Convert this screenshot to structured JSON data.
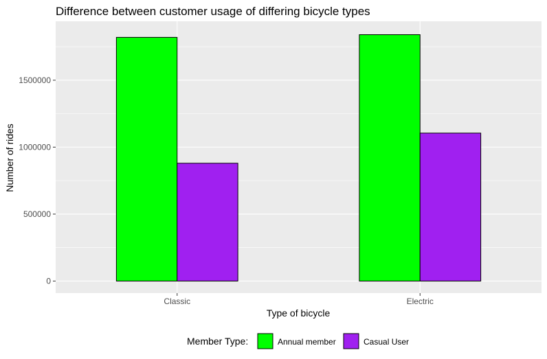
{
  "chart_data": {
    "type": "bar",
    "title": "Difference between customer usage of differing bicycle types",
    "xlabel": "Type of bicycle",
    "ylabel": "Number of rides",
    "categories": [
      "Classic",
      "Electric"
    ],
    "series": [
      {
        "name": "Annual member",
        "values": [
          1820000,
          1840000
        ],
        "color": "#00ff00"
      },
      {
        "name": "Casual User",
        "values": [
          880000,
          1105000
        ],
        "color": "#a020f0"
      }
    ],
    "ylim": [
      -90000,
      1940000
    ],
    "yticks": [
      0,
      500000,
      1000000,
      1500000
    ],
    "ytick_labels": [
      "0",
      "500000",
      "1000000",
      "1500000"
    ],
    "grid": true,
    "legend": {
      "title": "Member Type:",
      "position": "bottom",
      "entries": [
        "Annual member",
        "Casual User"
      ]
    },
    "panel_background": "#ebebeb",
    "bar_outline": "#000000"
  }
}
